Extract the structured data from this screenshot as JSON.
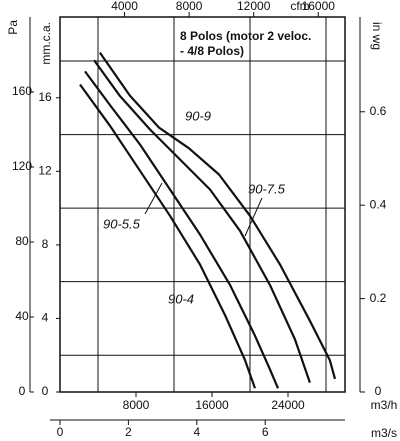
{
  "chart_data": {
    "type": "line",
    "title": [
      "8 Polos (motor 2 veloc.",
      "- 4/8 Polos)"
    ],
    "xlabel": "m3/h",
    "xlim": [
      0,
      30000
    ],
    "xticks": [
      8000,
      16000,
      24000
    ],
    "x2label": "cfm",
    "x2lim": [
      0,
      17657
    ],
    "x2ticks": [
      4000,
      8000,
      12000,
      16000
    ],
    "x3label": "m3/s",
    "x3lim": [
      0,
      8.333
    ],
    "x3ticks": [
      0,
      2,
      4,
      6
    ],
    "ylabel": "Pa",
    "ylim": [
      0,
      200
    ],
    "yticks": [
      0,
      40,
      80,
      120,
      160
    ],
    "y2label": "mm.c.a.",
    "y2lim": [
      0,
      20.394
    ],
    "y2ticks": [
      0,
      4,
      8,
      12,
      16
    ],
    "y3label": "in wg",
    "y3lim": [
      0,
      0.8029
    ],
    "y3ticks": [
      0,
      0.2,
      0.4,
      0.6
    ],
    "grid": true,
    "xgrid": [
      4000,
      12000,
      20000,
      28000
    ],
    "ygrid": [
      2,
      6,
      10,
      14,
      18
    ],
    "series": [
      {
        "name": "90-9",
        "color": "#111111",
        "x": [
          4200,
          7370,
          10420,
          13580,
          16740,
          20000,
          23160,
          26300,
          28400,
          28950
        ],
        "values": [
          181,
          158,
          141,
          130,
          116,
          94,
          68,
          38,
          17,
          7
        ]
      },
      {
        "name": "90-7.5",
        "color": "#111111",
        "x": [
          3580,
          6300,
          9470,
          12630,
          15790,
          18950,
          22100,
          24740,
          26300
        ],
        "values": [
          177,
          158,
          140,
          124,
          108,
          86,
          57,
          28,
          5
        ]
      },
      {
        "name": "90-5.5",
        "color": "#111111",
        "x": [
          2630,
          5260,
          8420,
          11580,
          14740,
          17900,
          20530,
          22100,
          22950
        ],
        "values": [
          171,
          153,
          132,
          108,
          84,
          57,
          30,
          12,
          2
        ]
      },
      {
        "name": "90-4",
        "color": "#111111",
        "x": [
          2100,
          5260,
          8420,
          11580,
          14740,
          17370,
          19470,
          20530
        ],
        "values": [
          164,
          142,
          118,
          94,
          68,
          41,
          17,
          2
        ]
      }
    ]
  }
}
